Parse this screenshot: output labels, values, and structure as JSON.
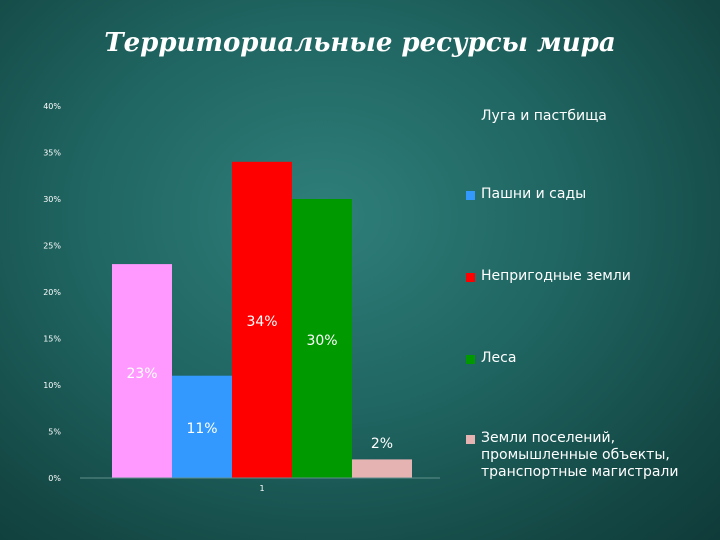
{
  "slide": {
    "title": "Территориальные ресурсы мира"
  },
  "chart_data": {
    "type": "bar",
    "categories": [
      "1"
    ],
    "series": [
      {
        "name": "Луга и пастбища",
        "values": [
          23
        ],
        "label": "23%",
        "color": "#ff99ff"
      },
      {
        "name": "Пашни и сады",
        "values": [
          11
        ],
        "label": "11%",
        "color": "#3399ff"
      },
      {
        "name": "Непригодные земли",
        "values": [
          34
        ],
        "label": "34%",
        "color": "#ff0000"
      },
      {
        "name": "Леса",
        "values": [
          30
        ],
        "label": "30%",
        "color": "#009900"
      },
      {
        "name": "Земли поселений, промышленные объекты, транспортные магистрали",
        "values": [
          2
        ],
        "label": "2%",
        "color": "#e6b3b3"
      }
    ],
    "y_ticks": [
      "0%",
      "5%",
      "10%",
      "15%",
      "20%",
      "25%",
      "30%",
      "35%",
      "40%"
    ],
    "ylim": [
      0,
      40
    ],
    "grid": false,
    "legend_position": "right",
    "title": "Территориальные ресурсы мира"
  }
}
